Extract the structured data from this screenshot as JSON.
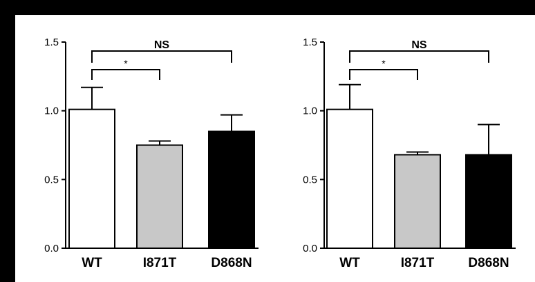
{
  "chart_data": [
    {
      "type": "bar",
      "categories": [
        "WT",
        "I871T",
        "D868N"
      ],
      "values": [
        1.01,
        0.75,
        0.85
      ],
      "errors": [
        0.16,
        0.03,
        0.12
      ],
      "bar_colors": [
        "#ffffff",
        "#c8c8c8",
        "#000000"
      ],
      "ylim": [
        0,
        1.5
      ],
      "yticks": [
        "0.0",
        "0.5",
        "1.0",
        "1.5"
      ],
      "annotations": [
        {
          "from": "WT",
          "to": "I871T",
          "label": "*"
        },
        {
          "from": "WT",
          "to": "D868N",
          "label": "NS"
        }
      ]
    },
    {
      "type": "bar",
      "categories": [
        "WT",
        "I871T",
        "D868N"
      ],
      "values": [
        1.01,
        0.68,
        0.68
      ],
      "errors": [
        0.18,
        0.02,
        0.22
      ],
      "bar_colors": [
        "#ffffff",
        "#c8c8c8",
        "#000000"
      ],
      "ylim": [
        0,
        1.5
      ],
      "yticks": [
        "0.0",
        "0.5",
        "1.0",
        "1.5"
      ],
      "annotations": [
        {
          "from": "WT",
          "to": "I871T",
          "label": "*"
        },
        {
          "from": "WT",
          "to": "D868N",
          "label": "NS"
        }
      ]
    }
  ]
}
